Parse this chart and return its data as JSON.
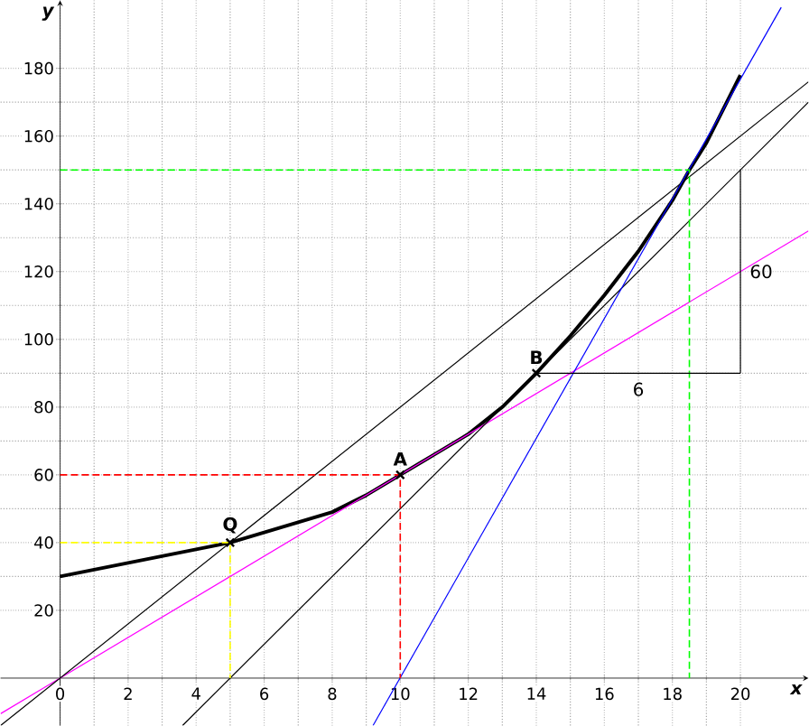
{
  "chart_data": {
    "type": "line",
    "xlabel": "x",
    "ylabel": "y",
    "xlim": [
      -1.75,
      22
    ],
    "ylim": [
      -14,
      200
    ],
    "xticks": [
      0,
      2,
      4,
      6,
      8,
      10,
      12,
      14,
      16,
      18,
      20
    ],
    "yticks": [
      20,
      40,
      60,
      80,
      100,
      120,
      140,
      160,
      180
    ],
    "grid": true,
    "series": [
      {
        "color": "#000000",
        "x": [
          0,
          1,
          2,
          3,
          4,
          5,
          6,
          7,
          8,
          9,
          10,
          11,
          12,
          13,
          14,
          15,
          16,
          17,
          18,
          18.5,
          19,
          20
        ],
        "values": [
          30,
          32,
          34,
          36,
          38,
          40,
          43,
          46,
          49,
          54,
          60,
          66,
          72,
          80,
          90,
          101,
          113,
          126,
          141,
          150,
          158,
          178
        ]
      },
      {
        "color": "#ff00ff",
        "x": [
          -1.75,
          22
        ],
        "values": [
          -10.5,
          132
        ]
      },
      {
        "color": "#000000",
        "x": [
          -1.75,
          22
        ],
        "values": [
          -14,
          176
        ]
      },
      {
        "color": "#000000",
        "x": [
          3.6,
          22
        ],
        "values": [
          -14,
          170
        ]
      },
      {
        "color": "#0000ff",
        "x": [
          9.2,
          21.2
        ],
        "values": [
          -14,
          198
        ]
      },
      {
        "color": "#ffff00",
        "line_style": "dashed",
        "x": [
          0,
          5,
          5
        ],
        "values": [
          40,
          40,
          0
        ]
      },
      {
        "color": "#ff0000",
        "line_style": "dashed",
        "x": [
          0,
          10,
          10
        ],
        "values": [
          60,
          60,
          0
        ]
      },
      {
        "color": "#00ff00",
        "line_style": "dashed",
        "x": [
          0,
          18.5,
          18.5
        ],
        "values": [
          150,
          150,
          0
        ]
      },
      {
        "color": "#000000",
        "x": [
          14,
          20
        ],
        "values": [
          90,
          90
        ]
      },
      {
        "color": "#000000",
        "x": [
          20,
          20
        ],
        "values": [
          90,
          150
        ]
      },
      {
        "type": "scatter",
        "marker": "cross",
        "color": "#000000",
        "x": [
          5,
          10,
          14
        ],
        "values": [
          40,
          60,
          90
        ]
      }
    ],
    "annotations": [
      {
        "text": "Q",
        "x": 5,
        "y": 40
      },
      {
        "text": "A",
        "x": 10,
        "y": 60
      },
      {
        "text": "B",
        "x": 14,
        "y": 90
      },
      {
        "text": "6",
        "x": 17,
        "y": 90
      },
      {
        "text": "60",
        "x": 20,
        "y": 120
      }
    ]
  }
}
